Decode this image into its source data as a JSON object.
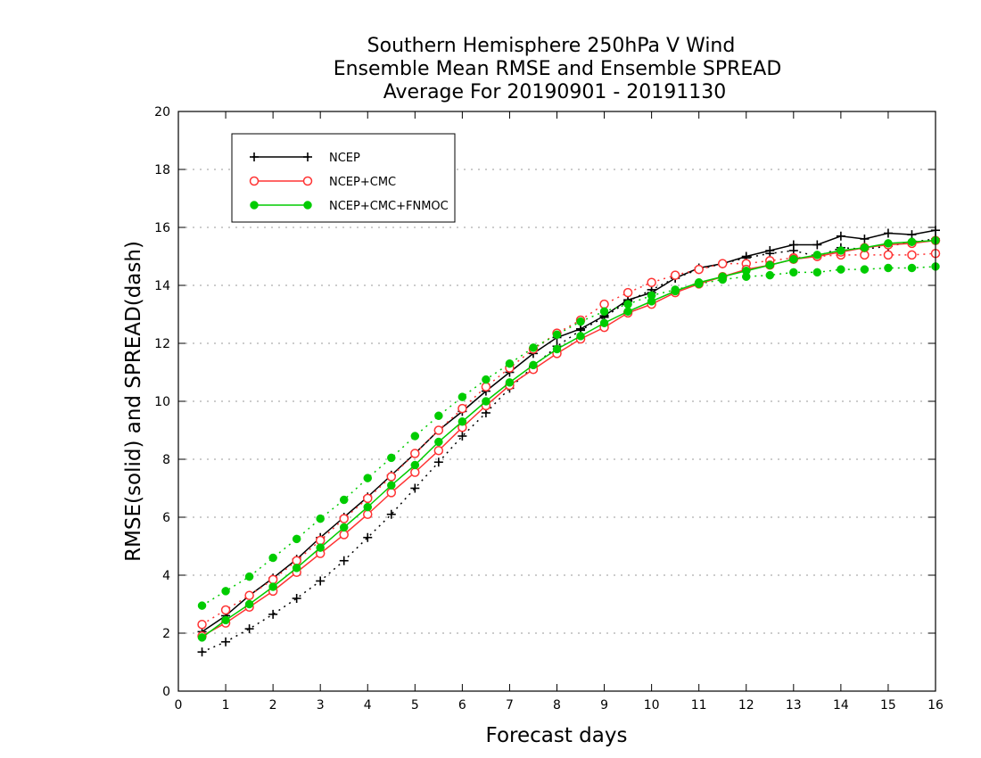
{
  "chart_data": {
    "type": "line",
    "title": [
      "Southern Hemisphere 250hPa V Wind",
      "Ensemble Mean RMSE and Ensemble SPREAD",
      "Average For 20190901 - 20191130"
    ],
    "xlabel": "Forecast days",
    "ylabel": "RMSE(solid) and SPREAD(dash)",
    "xlim": [
      0,
      16
    ],
    "ylim": [
      0,
      20
    ],
    "x_ticks": [
      0,
      1,
      2,
      3,
      4,
      5,
      6,
      7,
      8,
      9,
      10,
      11,
      12,
      13,
      14,
      15,
      16
    ],
    "y_ticks": [
      0,
      2,
      4,
      6,
      8,
      10,
      12,
      14,
      16,
      18,
      20
    ],
    "grid": "horizontal dotted",
    "legend_position": "top-left",
    "x": [
      0.5,
      1,
      1.5,
      2,
      2.5,
      3,
      3.5,
      4,
      4.5,
      5,
      5.5,
      6,
      6.5,
      7,
      7.5,
      8,
      8.5,
      9,
      9.5,
      10,
      10.5,
      11,
      11.5,
      12,
      12.5,
      13,
      13.5,
      14,
      14.5,
      15,
      15.5,
      16
    ],
    "series": [
      {
        "name": "NCEP",
        "color": "#000000",
        "marker": "plus",
        "rmse": [
          2.05,
          2.6,
          3.3,
          3.9,
          4.55,
          5.3,
          6.0,
          6.7,
          7.45,
          8.2,
          9.0,
          9.65,
          10.35,
          11.0,
          11.65,
          12.2,
          12.5,
          12.95,
          13.5,
          13.75,
          14.25,
          14.6,
          14.75,
          15.0,
          15.2,
          15.4,
          15.4,
          15.7,
          15.6,
          15.8,
          15.75,
          15.9
        ],
        "spread": [
          1.35,
          1.7,
          2.15,
          2.65,
          3.2,
          3.8,
          4.5,
          5.3,
          6.1,
          7.0,
          7.9,
          8.8,
          9.6,
          10.45,
          11.2,
          11.9,
          12.45,
          12.9,
          13.45,
          13.85,
          14.25,
          14.55,
          14.75,
          14.95,
          15.1,
          15.2,
          15.0,
          15.3,
          15.25,
          15.35,
          15.5,
          15.6
        ]
      },
      {
        "name": "NCEP+CMC",
        "color": "#ff3333",
        "marker": "open-circle",
        "rmse": [
          1.9,
          2.35,
          2.9,
          3.45,
          4.1,
          4.75,
          5.4,
          6.1,
          6.85,
          7.55,
          8.3,
          9.1,
          9.85,
          10.55,
          11.1,
          11.65,
          12.15,
          12.55,
          13.05,
          13.35,
          13.75,
          14.05,
          14.3,
          14.55,
          14.7,
          14.9,
          15.0,
          15.15,
          15.3,
          15.4,
          15.45,
          15.55
        ],
        "spread": [
          2.3,
          2.8,
          3.3,
          3.85,
          4.5,
          5.2,
          5.95,
          6.65,
          7.4,
          8.2,
          9.0,
          9.75,
          10.5,
          11.15,
          11.8,
          12.35,
          12.8,
          13.35,
          13.75,
          14.1,
          14.35,
          14.55,
          14.75,
          14.75,
          14.85,
          14.95,
          15.0,
          15.05,
          15.05,
          15.05,
          15.05,
          15.1
        ]
      },
      {
        "name": "NCEP+CMC+FNMOC",
        "color": "#00cc00",
        "marker": "filled-circle",
        "rmse": [
          1.85,
          2.45,
          3.0,
          3.6,
          4.25,
          4.95,
          5.65,
          6.35,
          7.1,
          7.8,
          8.6,
          9.3,
          10.0,
          10.65,
          11.25,
          11.8,
          12.25,
          12.7,
          13.1,
          13.45,
          13.8,
          14.1,
          14.3,
          14.5,
          14.7,
          14.9,
          15.05,
          15.2,
          15.3,
          15.45,
          15.5,
          15.55
        ],
        "spread": [
          2.95,
          3.45,
          3.95,
          4.6,
          5.25,
          5.95,
          6.6,
          7.35,
          8.05,
          8.8,
          9.5,
          10.15,
          10.75,
          11.3,
          11.85,
          12.3,
          12.75,
          13.1,
          13.35,
          13.65,
          13.85,
          14.05,
          14.2,
          14.3,
          14.35,
          14.45,
          14.45,
          14.55,
          14.55,
          14.6,
          14.6,
          14.65
        ]
      }
    ]
  }
}
